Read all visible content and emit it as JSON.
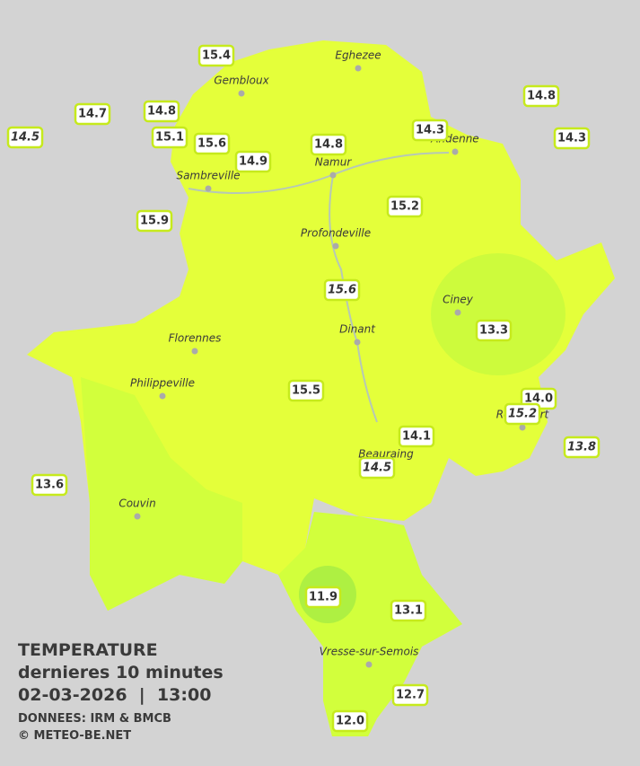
{
  "legend": {
    "title": "TEMPERATURE",
    "subtitle": "dernieres 10 minutes",
    "datetime": "02-03-2026  |  13:00",
    "source": "DONNEES: IRM & BMCB",
    "copyright": "© METEO-BE.NET"
  },
  "cities": [
    "Eghezee",
    "Gembloux",
    "Andenne",
    "Namur",
    "Sambreville",
    "Profondeville",
    "Ciney",
    "Dinant",
    "Florennes",
    "Philippeville",
    "Rochefort",
    "Beauraing",
    "Couvin",
    "Vresse-sur-Semois"
  ],
  "stations": [
    {
      "value": "15.4"
    },
    {
      "value": "14.7"
    },
    {
      "value": "14.5",
      "italic": true
    },
    {
      "value": "14.8"
    },
    {
      "value": "15.1"
    },
    {
      "value": "15.6"
    },
    {
      "value": "14.9"
    },
    {
      "value": "14.8"
    },
    {
      "value": "14.3"
    },
    {
      "value": "14.8"
    },
    {
      "value": "14.3"
    },
    {
      "value": "15.9"
    },
    {
      "value": "15.2"
    },
    {
      "value": "15.6",
      "italic": true
    },
    {
      "value": "13.3"
    },
    {
      "value": "15.5"
    },
    {
      "value": "14.0"
    },
    {
      "value": "15.2",
      "italic": true
    },
    {
      "value": "13.8",
      "italic": true
    },
    {
      "value": "14.1"
    },
    {
      "value": "14.5",
      "italic": true
    },
    {
      "value": "13.6"
    },
    {
      "value": "11.9"
    },
    {
      "value": "13.1"
    },
    {
      "value": "12.7"
    },
    {
      "value": "12.0"
    }
  ]
}
